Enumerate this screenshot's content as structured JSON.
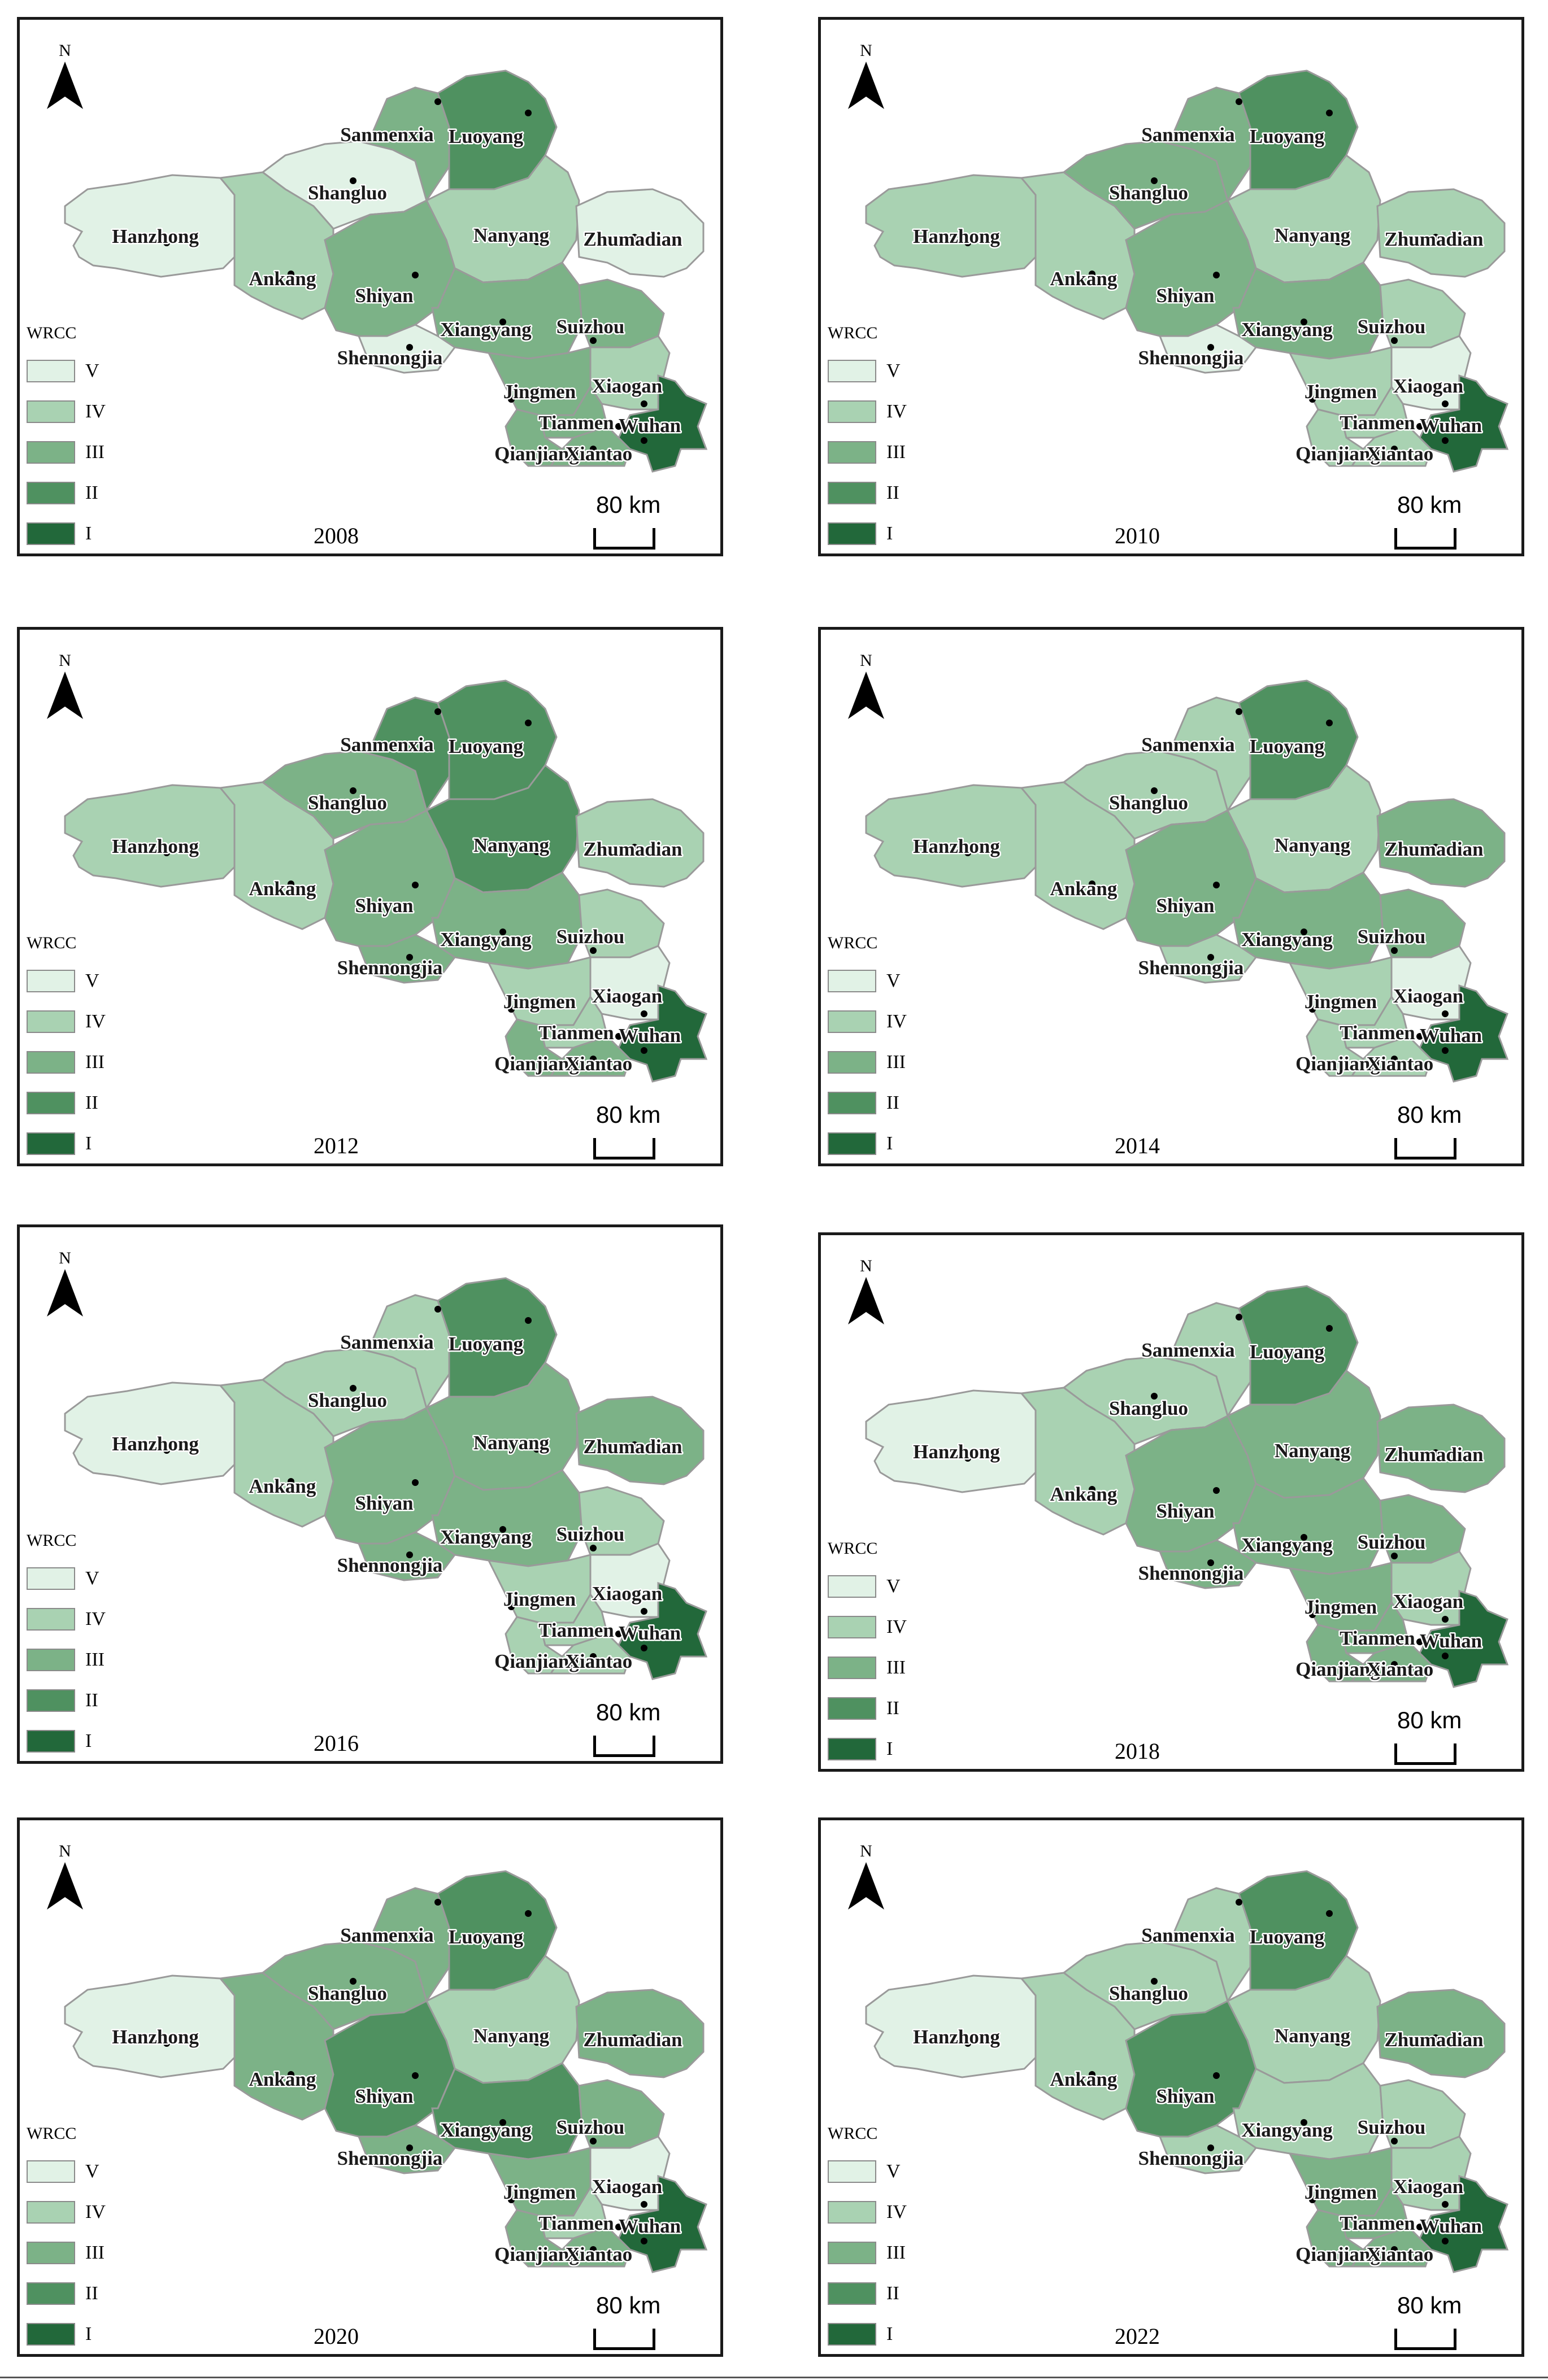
{
  "legend": {
    "title": "WRCC",
    "classes": [
      {
        "label": "V",
        "color": "#e1f2e6"
      },
      {
        "label": "IV",
        "color": "#a9d2b2"
      },
      {
        "label": "III",
        "color": "#7cb287"
      },
      {
        "label": "II",
        "color": "#4f9160"
      },
      {
        "label": "I",
        "color": "#22683a"
      }
    ]
  },
  "north_label": "N",
  "scale_label": "80 km",
  "cities": [
    "Hanzhong",
    "Shangluo",
    "Sanmenxia",
    "Luoyang",
    "Nanyang",
    "Zhumadian",
    "Ankang",
    "Shiyan",
    "Xiangyang",
    "Suizhou",
    "Shennongjia",
    "Jingmen",
    "Xiaogan",
    "Tianmen",
    "Wuhan",
    "Qianjiang",
    "Xiantao"
  ],
  "panels": [
    {
      "year": "2008",
      "classes": {
        "Hanzhong": "V",
        "Shangluo": "V",
        "Sanmenxia": "III",
        "Luoyang": "II",
        "Nanyang": "IV",
        "Zhumadian": "V",
        "Ankang": "IV",
        "Shiyan": "III",
        "Xiangyang": "III",
        "Suizhou": "III",
        "Shennongjia": "V",
        "Jingmen": "III",
        "Xiaogan": "IV",
        "Tianmen": "III",
        "Wuhan": "I",
        "Qianjiang": "III",
        "Xiantao": "III"
      }
    },
    {
      "year": "2010",
      "classes": {
        "Hanzhong": "IV",
        "Shangluo": "III",
        "Sanmenxia": "III",
        "Luoyang": "II",
        "Nanyang": "IV",
        "Zhumadian": "IV",
        "Ankang": "IV",
        "Shiyan": "III",
        "Xiangyang": "III",
        "Suizhou": "IV",
        "Shennongjia": "V",
        "Jingmen": "IV",
        "Xiaogan": "V",
        "Tianmen": "IV",
        "Wuhan": "I",
        "Qianjiang": "IV",
        "Xiantao": "IV"
      }
    },
    {
      "year": "2012",
      "classes": {
        "Hanzhong": "IV",
        "Shangluo": "III",
        "Sanmenxia": "II",
        "Luoyang": "II",
        "Nanyang": "II",
        "Zhumadian": "IV",
        "Ankang": "IV",
        "Shiyan": "III",
        "Xiangyang": "III",
        "Suizhou": "IV",
        "Shennongjia": "III",
        "Jingmen": "IV",
        "Xiaogan": "V",
        "Tianmen": "IV",
        "Wuhan": "I",
        "Qianjiang": "III",
        "Xiantao": "III"
      }
    },
    {
      "year": "2014",
      "classes": {
        "Hanzhong": "IV",
        "Shangluo": "IV",
        "Sanmenxia": "IV",
        "Luoyang": "II",
        "Nanyang": "IV",
        "Zhumadian": "III",
        "Ankang": "IV",
        "Shiyan": "III",
        "Xiangyang": "III",
        "Suizhou": "III",
        "Shennongjia": "IV",
        "Jingmen": "IV",
        "Xiaogan": "V",
        "Tianmen": "IV",
        "Wuhan": "I",
        "Qianjiang": "IV",
        "Xiantao": "IV"
      }
    },
    {
      "year": "2016",
      "classes": {
        "Hanzhong": "V",
        "Shangluo": "IV",
        "Sanmenxia": "IV",
        "Luoyang": "II",
        "Nanyang": "III",
        "Zhumadian": "III",
        "Ankang": "IV",
        "Shiyan": "III",
        "Xiangyang": "III",
        "Suizhou": "IV",
        "Shennongjia": "III",
        "Jingmen": "IV",
        "Xiaogan": "V",
        "Tianmen": "IV",
        "Wuhan": "I",
        "Qianjiang": "IV",
        "Xiantao": "IV"
      }
    },
    {
      "year": "2018",
      "classes": {
        "Hanzhong": "V",
        "Shangluo": "IV",
        "Sanmenxia": "IV",
        "Luoyang": "II",
        "Nanyang": "III",
        "Zhumadian": "III",
        "Ankang": "IV",
        "Shiyan": "III",
        "Xiangyang": "III",
        "Suizhou": "III",
        "Shennongjia": "III",
        "Jingmen": "III",
        "Xiaogan": "IV",
        "Tianmen": "III",
        "Wuhan": "I",
        "Qianjiang": "III",
        "Xiantao": "III"
      }
    },
    {
      "year": "2020",
      "classes": {
        "Hanzhong": "V",
        "Shangluo": "III",
        "Sanmenxia": "III",
        "Luoyang": "II",
        "Nanyang": "IV",
        "Zhumadian": "III",
        "Ankang": "III",
        "Shiyan": "II",
        "Xiangyang": "II",
        "Suizhou": "III",
        "Shennongjia": "III",
        "Jingmen": "III",
        "Xiaogan": "V",
        "Tianmen": "IV",
        "Wuhan": "I",
        "Qianjiang": "III",
        "Xiantao": "III"
      }
    },
    {
      "year": "2022",
      "classes": {
        "Hanzhong": "V",
        "Shangluo": "IV",
        "Sanmenxia": "IV",
        "Luoyang": "II",
        "Nanyang": "IV",
        "Zhumadian": "III",
        "Ankang": "IV",
        "Shiyan": "II",
        "Xiangyang": "IV",
        "Suizhou": "IV",
        "Shennongjia": "IV",
        "Jingmen": "III",
        "Xiaogan": "IV",
        "Tianmen": "III",
        "Wuhan": "I",
        "Qianjiang": "III",
        "Xiantao": "III"
      }
    }
  ]
}
